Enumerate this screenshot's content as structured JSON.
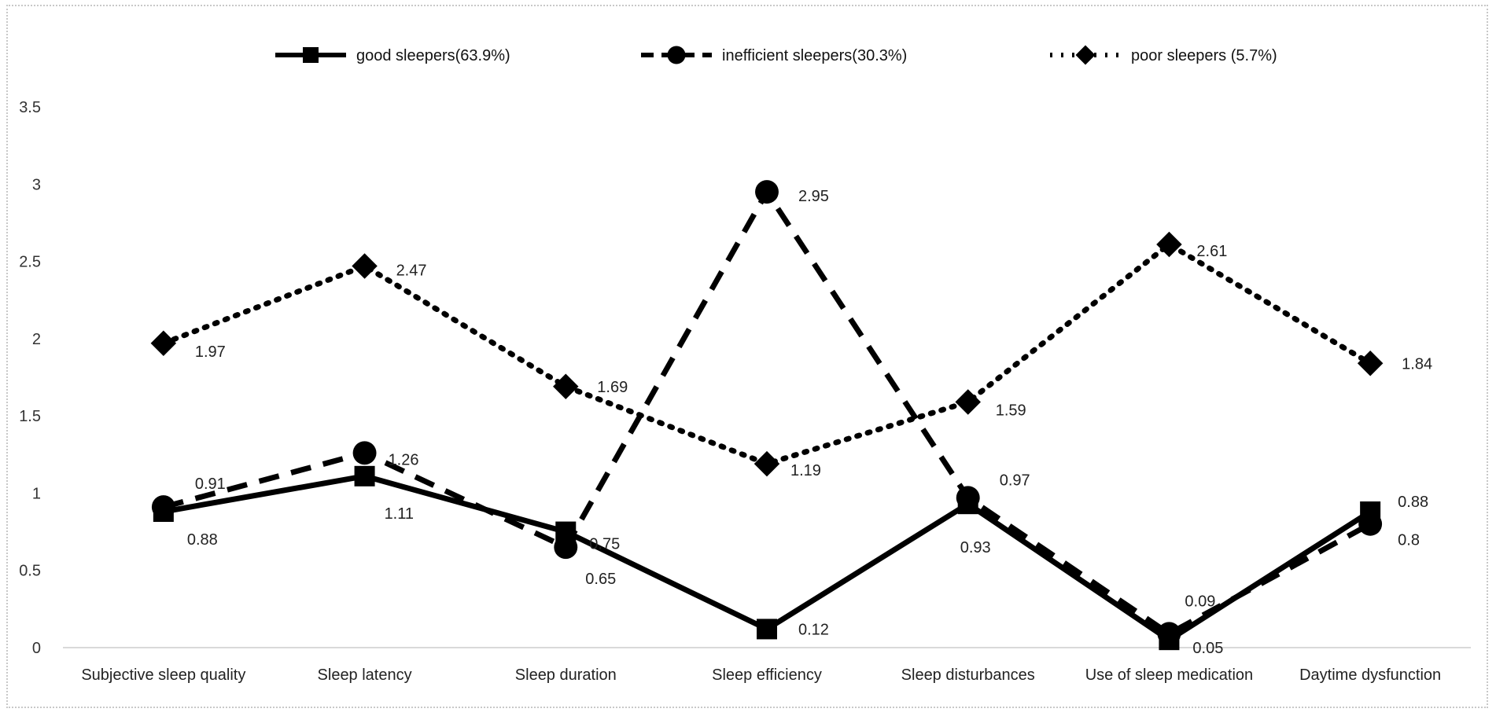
{
  "chart_data": {
    "type": "line",
    "categories": [
      "Subjective sleep quality",
      "Sleep latency",
      "Sleep duration",
      "Sleep efficiency",
      "Sleep disturbances",
      "Use of sleep medication",
      "Daytime dysfunction"
    ],
    "series": [
      {
        "name": "good sleepers(63.9%)",
        "values": [
          0.88,
          1.11,
          0.75,
          0.12,
          0.93,
          0.05,
          0.88
        ],
        "labels": [
          "0.88",
          "1.11",
          "0.75",
          "0.12",
          "0.93",
          "0.05",
          "0.88"
        ],
        "line_style": "solid",
        "marker": "square",
        "color": "#000000"
      },
      {
        "name": "inefficient sleepers(30.3%)",
        "values": [
          0.91,
          1.26,
          0.65,
          2.95,
          0.97,
          0.09,
          0.8
        ],
        "labels": [
          "0.91",
          "1.26",
          "0.65",
          "2.95",
          "0.97",
          "0.09",
          "0.8"
        ],
        "line_style": "dashed",
        "marker": "circle",
        "color": "#000000"
      },
      {
        "name": "poor sleepers (5.7%)",
        "values": [
          1.97,
          2.47,
          1.69,
          1.19,
          1.59,
          2.61,
          1.84
        ],
        "labels": [
          "1.97",
          "2.47",
          "1.69",
          "1.19",
          "1.59",
          "2.61",
          "1.84"
        ],
        "line_style": "dotted",
        "marker": "diamond",
        "color": "#000000"
      }
    ],
    "yticks": [
      "0",
      "0.5",
      "1",
      "1.5",
      "2",
      "2.5",
      "3",
      "3.5"
    ],
    "ylim": [
      0,
      3.5
    ],
    "grid": false,
    "legend_position": "top"
  }
}
